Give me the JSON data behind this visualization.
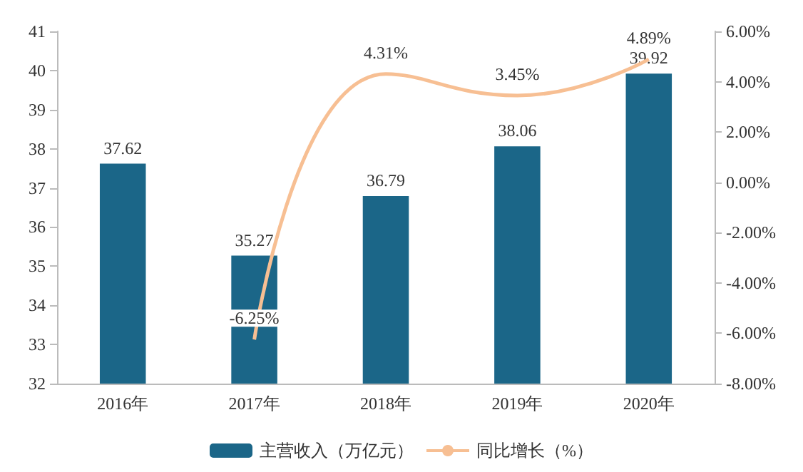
{
  "chart_data": {
    "type": "bar",
    "categories": [
      "2016年",
      "2017年",
      "2018年",
      "2019年",
      "2020年"
    ],
    "series": [
      {
        "name": "主营收入（万亿元）",
        "color": "#1b6688",
        "values": [
          37.62,
          35.27,
          36.79,
          38.06,
          39.92
        ],
        "value_labels": [
          "37.62",
          "35.27",
          "36.79",
          "38.06",
          "39.92"
        ]
      },
      {
        "name": "同比增长（%）",
        "type": "line",
        "axis": "y2",
        "color": "#f7bf93",
        "values": [
          null,
          -6.25,
          4.31,
          3.45,
          4.89
        ],
        "value_labels": [
          null,
          "-6.25%",
          "4.31%",
          "3.45%",
          "4.89%"
        ]
      }
    ],
    "ylim": [
      32,
      41
    ],
    "yticks": [
      32,
      33,
      34,
      35,
      36,
      37,
      38,
      39,
      40,
      41
    ],
    "y2lim": [
      -8,
      6
    ],
    "y2ticks": [
      {
        "value": -8,
        "label": "-8.00%"
      },
      {
        "value": -6,
        "label": "-6.00%"
      },
      {
        "value": -4,
        "label": "-4.00%"
      },
      {
        "value": -2,
        "label": "-2.00%"
      },
      {
        "value": 0,
        "label": "0.00%"
      },
      {
        "value": 2,
        "label": "2.00%"
      },
      {
        "value": 4,
        "label": "4.00%"
      },
      {
        "value": 6,
        "label": "6.00%"
      }
    ],
    "grid": false,
    "legend": "bottom",
    "marker": "none",
    "line_style": "solid"
  }
}
